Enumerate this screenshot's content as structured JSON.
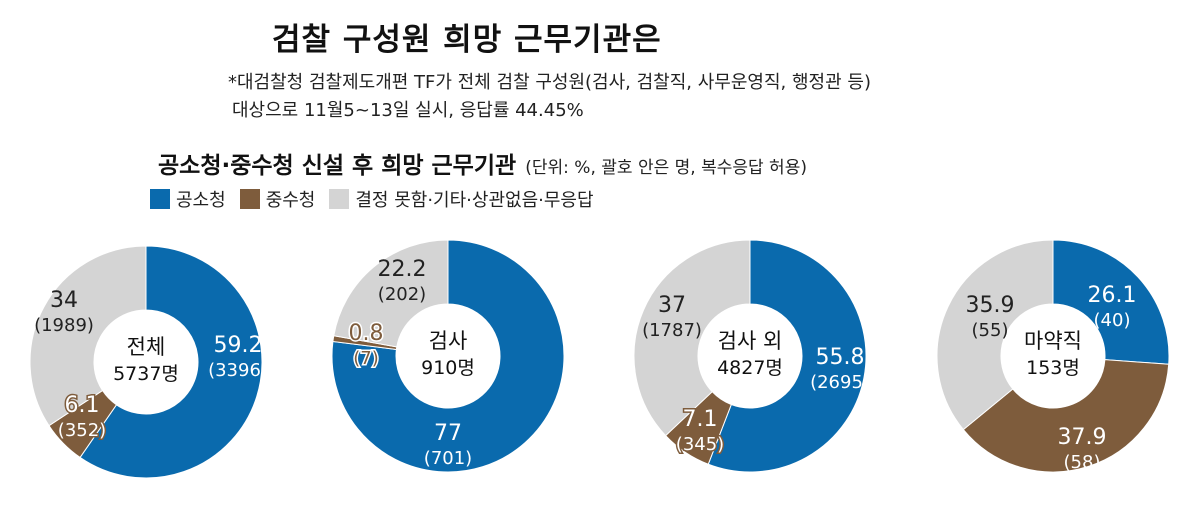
{
  "title": "검찰 구성원 희망 근무기관은",
  "note": {
    "line1": "*대검찰청 검찰제도개편 TF가 전체 검찰 구성원(검사, 검찰직, 사무운영직, 행정관 등)",
    "line2": "대상으로 11월5~13일 실시, 응답률 44.45%"
  },
  "subtitle": {
    "main": "공소청·중수청 신설 후 희망 근무기관",
    "unit": "(단위: %, 괄호 안은 명, 복수응답 허용)"
  },
  "legend": [
    {
      "label": "공소청",
      "color": "#0a6aad"
    },
    {
      "label": "중수청",
      "color": "#7e5c3c"
    },
    {
      "label": "결정 못함·기타·상관없음·무응답",
      "color": "#d4d4d4"
    }
  ],
  "chart_data": [
    {
      "type": "pie",
      "center_label": [
        "전체",
        "5737명"
      ],
      "slices": [
        {
          "name": "공소청",
          "percent": 59.2,
          "count": 3396,
          "color": "#0a6aad"
        },
        {
          "name": "중수청",
          "percent": 6.1,
          "count": 352,
          "color": "#7e5c3c"
        },
        {
          "name": "결정 못함·기타·상관없음·무응답",
          "percent": 34,
          "count": 1989,
          "color": "#d4d4d4"
        }
      ],
      "value_labels": [
        [
          "59.2",
          "(3396)"
        ],
        [
          "6.1",
          "(352)"
        ],
        [
          "34",
          "(1989)"
        ]
      ]
    },
    {
      "type": "pie",
      "center_label": [
        "검사",
        "910명"
      ],
      "slices": [
        {
          "name": "공소청",
          "percent": 77,
          "count": 701,
          "color": "#0a6aad"
        },
        {
          "name": "중수청",
          "percent": 0.8,
          "count": 7,
          "color": "#7e5c3c"
        },
        {
          "name": "결정 못함·기타·상관없음·무응답",
          "percent": 22.2,
          "count": 202,
          "color": "#d4d4d4"
        }
      ],
      "value_labels": [
        [
          "77",
          "(701)"
        ],
        [
          "0.8",
          "(7)"
        ],
        [
          "22.2",
          "(202)"
        ]
      ]
    },
    {
      "type": "pie",
      "center_label": [
        "검사 외",
        "4827명"
      ],
      "slices": [
        {
          "name": "공소청",
          "percent": 55.8,
          "count": 2695,
          "color": "#0a6aad"
        },
        {
          "name": "중수청",
          "percent": 7.1,
          "count": 345,
          "color": "#7e5c3c"
        },
        {
          "name": "결정 못함·기타·상관없음·무응답",
          "percent": 37,
          "count": 1787,
          "color": "#d4d4d4"
        }
      ],
      "value_labels": [
        [
          "55.8",
          "(2695)"
        ],
        [
          "7.1",
          "(345)"
        ],
        [
          "37",
          "(1787)"
        ]
      ]
    },
    {
      "type": "pie",
      "center_label": [
        "마약직",
        "153명"
      ],
      "slices": [
        {
          "name": "공소청",
          "percent": 26.1,
          "count": 40,
          "color": "#0a6aad"
        },
        {
          "name": "중수청",
          "percent": 37.9,
          "count": 58,
          "color": "#7e5c3c"
        },
        {
          "name": "결정 못함·기타·상관없음·무응답",
          "percent": 35.9,
          "count": 55,
          "color": "#d4d4d4"
        }
      ],
      "value_labels": [
        [
          "26.1",
          "(40)"
        ],
        [
          "37.9",
          "(58)"
        ],
        [
          "35.9",
          "(55)"
        ]
      ]
    }
  ]
}
